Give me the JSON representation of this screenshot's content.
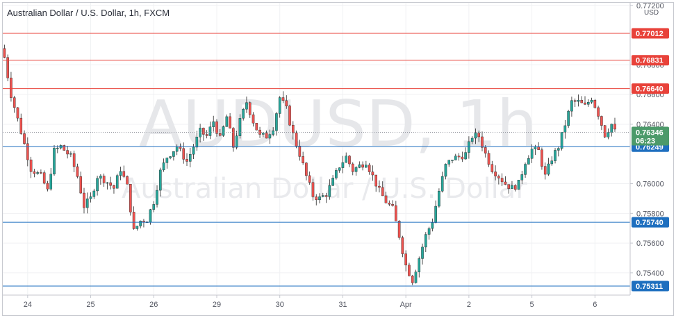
{
  "title": "Australian Dollar / U.S. Dollar, 1h, FXCM",
  "watermark": {
    "symbol": "AUDUSD, 1h",
    "name": "Australian Dollar / U.S. Dollar"
  },
  "currency_label": "USD",
  "countdown": "06:23",
  "colors": {
    "up": "#26a69a",
    "down": "#ef5350",
    "resistance": "#e8423a",
    "support": "#1e6fbf",
    "current": "#4c9a6a"
  },
  "chart_data": {
    "type": "candlestick",
    "title": "Australian Dollar / U.S. Dollar, 1h, FXCM",
    "ylim": [
      0.7525,
      0.7722
    ],
    "y_ticks": [
      "0.77200",
      "0.76800",
      "0.76600",
      "0.76400",
      "0.76000",
      "0.75800",
      "0.75600",
      "0.75400"
    ],
    "y_tick_values": [
      0.772,
      0.768,
      0.766,
      0.764,
      0.76,
      0.758,
      0.756,
      0.754
    ],
    "x_labels": [
      "24",
      "25",
      "26",
      "29",
      "30",
      "31",
      "Apr",
      "2",
      "5",
      "6"
    ],
    "x_label_index": [
      7,
      26,
      45,
      64,
      83,
      102,
      121,
      140,
      159,
      178
    ],
    "current_price": "0.76346",
    "current_value": 0.76346,
    "resistance_levels": [
      {
        "label": "0.77012",
        "value": 0.77012
      },
      {
        "label": "0.76831",
        "value": 0.76831
      },
      {
        "label": "0.76640",
        "value": 0.7664
      }
    ],
    "support_levels": [
      {
        "label": "0.76249",
        "value": 0.76249
      },
      {
        "label": "0.75740",
        "value": 0.7574
      },
      {
        "label": "0.75311",
        "value": 0.75311
      }
    ],
    "close_path": [
      [
        0,
        0.7685
      ],
      [
        2,
        0.766
      ],
      [
        5,
        0.7635
      ],
      [
        8,
        0.761
      ],
      [
        11,
        0.7605
      ],
      [
        13,
        0.7595
      ],
      [
        15,
        0.7622
      ],
      [
        17,
        0.7625
      ],
      [
        20,
        0.7618
      ],
      [
        22,
        0.7605
      ],
      [
        24,
        0.7585
      ],
      [
        26,
        0.759
      ],
      [
        28,
        0.7605
      ],
      [
        30,
        0.7603
      ],
      [
        33,
        0.7597
      ],
      [
        35,
        0.761
      ],
      [
        37,
        0.7598
      ],
      [
        39,
        0.7568
      ],
      [
        41,
        0.7575
      ],
      [
        43,
        0.7576
      ],
      [
        45,
        0.7588
      ],
      [
        47,
        0.7608
      ],
      [
        49,
        0.7618
      ],
      [
        52,
        0.7625
      ],
      [
        55,
        0.7615
      ],
      [
        57,
        0.7625
      ],
      [
        59,
        0.7635
      ],
      [
        61,
        0.7632
      ],
      [
        63,
        0.7642
      ],
      [
        65,
        0.763
      ],
      [
        67,
        0.7645
      ],
      [
        69,
        0.7625
      ],
      [
        71,
        0.7642
      ],
      [
        73,
        0.7655
      ],
      [
        75,
        0.7642
      ],
      [
        77,
        0.7632
      ],
      [
        79,
        0.7632
      ],
      [
        81,
        0.7638
      ],
      [
        83,
        0.7658
      ],
      [
        85,
        0.765
      ],
      [
        87,
        0.7633
      ],
      [
        89,
        0.762
      ],
      [
        91,
        0.7605
      ],
      [
        93,
        0.7592
      ],
      [
        95,
        0.759
      ],
      [
        97,
        0.7593
      ],
      [
        99,
        0.7602
      ],
      [
        101,
        0.7612
      ],
      [
        103,
        0.7618
      ],
      [
        105,
        0.7609
      ],
      [
        107,
        0.7612
      ],
      [
        109,
        0.7615
      ],
      [
        111,
        0.7605
      ],
      [
        113,
        0.7595
      ],
      [
        115,
        0.7588
      ],
      [
        117,
        0.7583
      ],
      [
        119,
        0.7565
      ],
      [
        121,
        0.7545
      ],
      [
        123,
        0.7535
      ],
      [
        125,
        0.755
      ],
      [
        127,
        0.7565
      ],
      [
        129,
        0.7575
      ],
      [
        131,
        0.7595
      ],
      [
        133,
        0.7612
      ],
      [
        135,
        0.7617
      ],
      [
        137,
        0.7618
      ],
      [
        139,
        0.762
      ],
      [
        141,
        0.7632
      ],
      [
        143,
        0.7632
      ],
      [
        145,
        0.762
      ],
      [
        147,
        0.761
      ],
      [
        149,
        0.7605
      ],
      [
        151,
        0.76
      ],
      [
        153,
        0.7597
      ],
      [
        155,
        0.76
      ],
      [
        157,
        0.7615
      ],
      [
        159,
        0.7623
      ],
      [
        161,
        0.7622
      ],
      [
        163,
        0.7605
      ],
      [
        165,
        0.7617
      ],
      [
        167,
        0.7625
      ],
      [
        169,
        0.764
      ],
      [
        171,
        0.7655
      ],
      [
        173,
        0.7655
      ],
      [
        175,
        0.7652
      ],
      [
        177,
        0.7658
      ],
      [
        179,
        0.7647
      ],
      [
        181,
        0.7633
      ],
      [
        183,
        0.764
      ],
      [
        184,
        0.7635
      ]
    ],
    "candle_count": 185,
    "grid": true
  }
}
